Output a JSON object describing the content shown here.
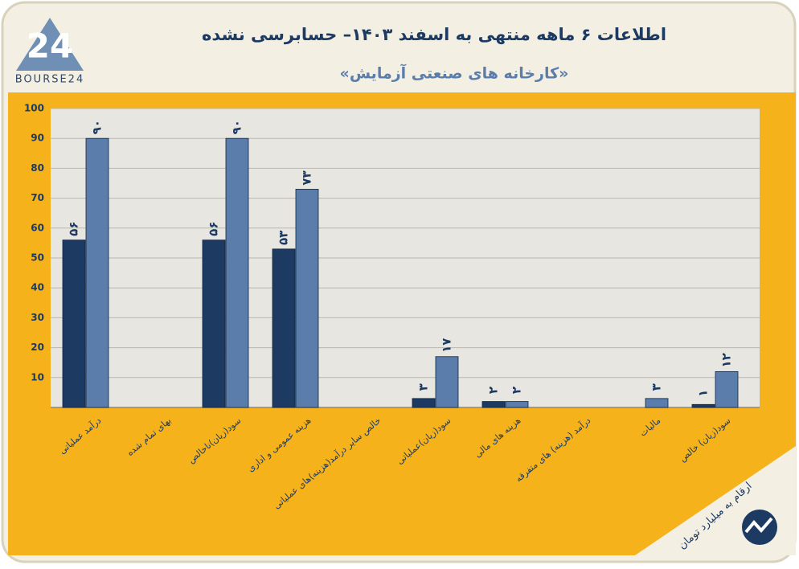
{
  "logo": {
    "mark": "24",
    "text": "BOURSE24"
  },
  "chart_data": {
    "type": "bar",
    "title": "اطلاعات ۶ ماهه منتهی به اسفند ۱۴۰۳– حسابرسی نشده",
    "subtitle": "«کارخانه های صنعتی آزمایش»",
    "note": "ارقام به میلیارد تومان",
    "categories": [
      "درآمد عملیاتی",
      "بهای تمام شده",
      "سود(زیان)ناخالص",
      "هزینه عمومی و اداری",
      "خالص سایر درآمد(هزینه)های عملیاتی",
      "سود(زیان)عملیاتی",
      "هزینه های مالی",
      "درآمد (هزینه) های متفرقه",
      "مالیات",
      "سود(زیان) خالص"
    ],
    "series": [
      {
        "color": "#1d3a63",
        "values": [
          56,
          null,
          56,
          53,
          null,
          3,
          2,
          null,
          null,
          1
        ],
        "value_labels": [
          "۵۶",
          null,
          "۵۶",
          "۵۳",
          null,
          "۳",
          "۲",
          null,
          null,
          "۱"
        ]
      },
      {
        "color": "#5a7dab",
        "values": [
          90,
          null,
          90,
          73,
          null,
          17,
          2,
          null,
          3,
          12
        ],
        "value_labels": [
          "۹۰",
          null,
          "۹۰",
          "۷۳",
          null,
          "۱۷",
          "۲",
          null,
          "۳",
          "۱۲"
        ]
      }
    ],
    "ylim": [
      0,
      100
    ],
    "yticks": [
      10,
      20,
      30,
      40,
      50,
      60,
      70,
      80,
      90,
      100
    ],
    "grid": true
  }
}
